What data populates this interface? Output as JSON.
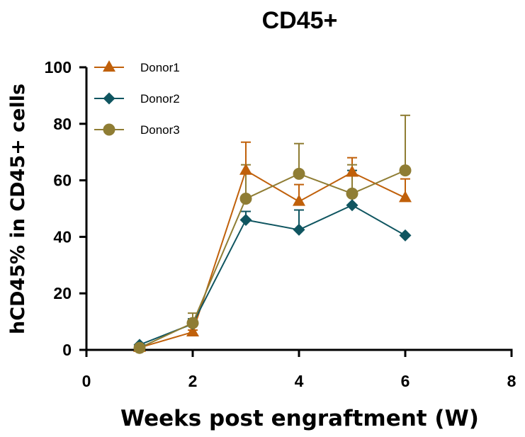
{
  "chart_data": {
    "type": "line",
    "title": "CD45+",
    "xlabel": "Weeks post engraftment (W)",
    "ylabel": "hCD45% in CD45+ cells",
    "xlim": [
      0,
      8
    ],
    "ylim": [
      0,
      100
    ],
    "xticks": [
      0,
      2,
      4,
      6,
      8
    ],
    "yticks": [
      0,
      20,
      40,
      60,
      80,
      100
    ],
    "grid": false,
    "legend_position": "top-left",
    "series": [
      {
        "name": "Donor1",
        "color": "#C0600A",
        "marker": "triangle",
        "x": [
          1,
          2,
          3,
          4,
          5,
          6
        ],
        "y": [
          0.8,
          6.3,
          63.5,
          52.5,
          62.8,
          53.8
        ],
        "error_upper": [
          null,
          7.0,
          73.5,
          58.5,
          68.0,
          60.5
        ]
      },
      {
        "name": "Donor2",
        "color": "#0F5560",
        "marker": "diamond",
        "x": [
          1,
          2,
          3,
          4,
          5,
          6
        ],
        "y": [
          1.8,
          9.2,
          46.0,
          42.5,
          51.2,
          40.5
        ],
        "error_upper": [
          null,
          11.0,
          49.0,
          49.5,
          63.5,
          null
        ]
      },
      {
        "name": "Donor3",
        "color": "#8F7D34",
        "marker": "circle",
        "x": [
          1,
          2,
          3,
          4,
          5,
          6
        ],
        "y": [
          0.7,
          9.5,
          53.5,
          62.3,
          55.3,
          63.5
        ],
        "error_upper": [
          null,
          13.0,
          65.5,
          73.0,
          65.5,
          83.0
        ]
      }
    ]
  }
}
